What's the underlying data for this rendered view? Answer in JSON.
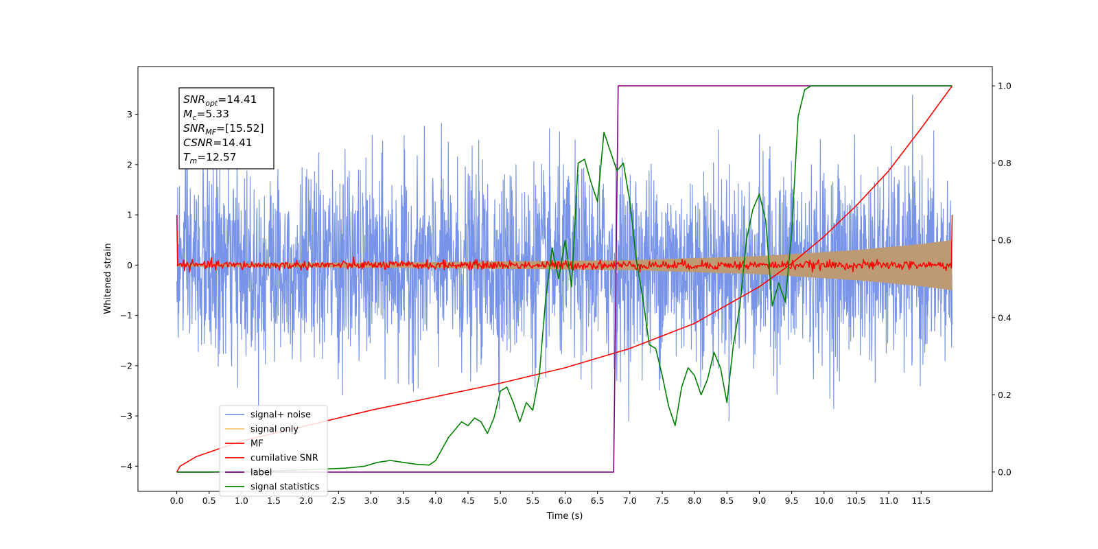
{
  "chart_data": {
    "type": "line",
    "title": "",
    "xlabel": "Time (s)",
    "ylabel": "Whitened strain",
    "xlim": [
      -0.6,
      12.6
    ],
    "ylim": [
      -4.5,
      3.95
    ],
    "y2lim": [
      -0.05,
      1.05
    ],
    "x_ticks": [
      0.0,
      0.5,
      1.0,
      1.5,
      2.0,
      2.5,
      3.0,
      3.5,
      4.0,
      4.5,
      5.0,
      5.5,
      6.0,
      6.5,
      7.0,
      7.5,
      8.0,
      8.5,
      9.0,
      9.5,
      10.0,
      10.5,
      11.0,
      11.5
    ],
    "x_tick_labels": [
      "0.0",
      "0.5",
      "1.0",
      "1.5",
      "2.0",
      "2.5",
      "3.0",
      "3.5",
      "4.0",
      "4.5",
      "5.0",
      "5.5",
      "6.0",
      "6.5",
      "7.0",
      "7.5",
      "8.0",
      "8.5",
      "9.0",
      "9.5",
      "10.0",
      "10.5",
      "11.0",
      "11.5"
    ],
    "y_ticks": [
      -4,
      -3,
      -2,
      -1,
      0,
      1,
      2,
      3
    ],
    "y_tick_labels": [
      "−4",
      "−3",
      "−2",
      "−1",
      "0",
      "1",
      "2",
      "3"
    ],
    "y2_ticks": [
      0.0,
      0.2,
      0.4,
      0.6,
      0.8,
      1.0
    ],
    "y2_tick_labels": [
      "0.0",
      "0.2",
      "0.4",
      "0.6",
      "0.8",
      "1.0"
    ],
    "grid": false,
    "legend_position": "lower-left",
    "annotation": [
      {
        "sym": "SNR",
        "sub": "opt",
        "value": "=14.41"
      },
      {
        "sym": "M",
        "sub": "c",
        "value": "=5.33"
      },
      {
        "sym": "SNR",
        "sub": "MF",
        "value": "=[15.52]"
      },
      {
        "sym": "CSNR",
        "sub": "",
        "value": "=14.41"
      },
      {
        "sym": "T",
        "sub": "m",
        "value": "=12.57"
      }
    ],
    "series": [
      {
        "name": "signal+ noise",
        "axis": "left",
        "color": "#7894e8",
        "kind": "noise",
        "x_range": [
          0.0,
          11.98
        ],
        "std": 0.95,
        "y_extent": [
          -3.1,
          3.58
        ]
      },
      {
        "name": "signal only",
        "axis": "left",
        "color": "#ffc575",
        "fill": "#bc9a74",
        "kind": "chirp-envelope",
        "x_range": [
          0.0,
          11.98
        ],
        "amplitude_points": [
          [
            0.0,
            0.03
          ],
          [
            4.0,
            0.06
          ],
          [
            7.0,
            0.1
          ],
          [
            9.0,
            0.18
          ],
          [
            10.5,
            0.3
          ],
          [
            11.5,
            0.42
          ],
          [
            11.98,
            0.5
          ]
        ]
      },
      {
        "name": "MF",
        "axis": "left",
        "color": "#ff0000",
        "kind": "noise",
        "x_range": [
          0.0,
          11.98
        ],
        "std": 0.045,
        "edge_value": 1.0
      },
      {
        "name": "cumilative SNR",
        "axis": "right",
        "color": "#ff0000",
        "kind": "line",
        "x": [
          0.0,
          0.05,
          0.3,
          1.0,
          2.0,
          3.0,
          4.0,
          5.0,
          6.0,
          7.0,
          8.0,
          9.0,
          9.5,
          10.0,
          10.5,
          11.0,
          11.5,
          11.98
        ],
        "y": [
          0.0,
          0.015,
          0.04,
          0.08,
          0.12,
          0.16,
          0.195,
          0.23,
          0.27,
          0.32,
          0.385,
          0.48,
          0.54,
          0.61,
          0.69,
          0.78,
          0.89,
          1.0
        ]
      },
      {
        "name": "label",
        "axis": "right",
        "color": "#800080",
        "kind": "line",
        "x": [
          0.0,
          6.75,
          6.82,
          11.98
        ],
        "y": [
          0.0,
          0.0,
          1.0,
          1.0
        ]
      },
      {
        "name": "signal statistics",
        "axis": "right",
        "color": "#008000",
        "kind": "line",
        "x": [
          0.0,
          0.5,
          1.0,
          1.5,
          2.0,
          2.3,
          2.6,
          2.9,
          3.1,
          3.3,
          3.5,
          3.7,
          3.9,
          4.0,
          4.1,
          4.2,
          4.3,
          4.4,
          4.5,
          4.6,
          4.7,
          4.8,
          4.9,
          5.0,
          5.1,
          5.2,
          5.3,
          5.4,
          5.5,
          5.6,
          5.7,
          5.8,
          5.9,
          6.0,
          6.1,
          6.2,
          6.3,
          6.4,
          6.5,
          6.6,
          6.7,
          6.8,
          6.9,
          7.0,
          7.1,
          7.2,
          7.3,
          7.4,
          7.5,
          7.6,
          7.7,
          7.8,
          7.9,
          8.0,
          8.1,
          8.2,
          8.3,
          8.4,
          8.5,
          8.6,
          8.7,
          8.8,
          8.9,
          9.0,
          9.1,
          9.2,
          9.3,
          9.4,
          9.5,
          9.6,
          9.7,
          9.8,
          10.0,
          10.5,
          11.0,
          11.5,
          11.98
        ],
        "y": [
          0.0,
          0.0,
          0.002,
          0.003,
          0.006,
          0.008,
          0.01,
          0.015,
          0.025,
          0.03,
          0.025,
          0.02,
          0.018,
          0.03,
          0.06,
          0.09,
          0.11,
          0.13,
          0.12,
          0.14,
          0.13,
          0.1,
          0.14,
          0.21,
          0.22,
          0.18,
          0.13,
          0.18,
          0.16,
          0.25,
          0.45,
          0.58,
          0.5,
          0.6,
          0.48,
          0.8,
          0.81,
          0.75,
          0.7,
          0.88,
          0.83,
          0.78,
          0.8,
          0.7,
          0.55,
          0.45,
          0.33,
          0.32,
          0.25,
          0.17,
          0.12,
          0.22,
          0.27,
          0.25,
          0.2,
          0.24,
          0.31,
          0.27,
          0.18,
          0.33,
          0.43,
          0.6,
          0.68,
          0.72,
          0.65,
          0.43,
          0.49,
          0.44,
          0.62,
          0.92,
          0.99,
          1.0,
          1.0,
          1.0,
          1.0,
          1.0,
          1.0
        ]
      }
    ]
  }
}
